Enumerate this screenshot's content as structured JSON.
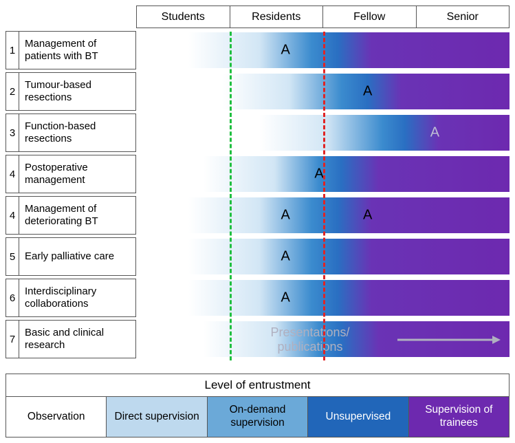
{
  "header": {
    "columns": [
      "Students",
      "Residents",
      "Fellow",
      "Senior"
    ]
  },
  "rows": [
    {
      "num": "1",
      "label": "Management of patients with BT",
      "grad_class": "g1",
      "markers": [
        {
          "pct": 40,
          "text": "A",
          "light": false
        }
      ]
    },
    {
      "num": "2",
      "label": "Tumour-based resections",
      "grad_class": "g2",
      "markers": [
        {
          "pct": 62,
          "text": "A",
          "light": false
        }
      ]
    },
    {
      "num": "3",
      "label": "Function-based resections",
      "grad_class": "g3",
      "markers": [
        {
          "pct": 80,
          "text": "A",
          "light": true
        }
      ]
    },
    {
      "num": "4",
      "label": "Postoperative management",
      "grad_class": "g4",
      "markers": [
        {
          "pct": 49,
          "text": "A",
          "light": false
        }
      ]
    },
    {
      "num": "4",
      "label": "Management of deteriorating BT",
      "grad_class": "g5",
      "markers": [
        {
          "pct": 40,
          "text": "A",
          "light": false
        },
        {
          "pct": 62,
          "text": "A",
          "light": false
        }
      ]
    },
    {
      "num": "5",
      "label": "Early palliative care",
      "grad_class": "g6",
      "markers": [
        {
          "pct": 40,
          "text": "A",
          "light": false
        }
      ]
    },
    {
      "num": "6",
      "label": "Interdisciplinary collaborations",
      "grad_class": "g7",
      "markers": [
        {
          "pct": 40,
          "text": "A",
          "light": false
        }
      ]
    },
    {
      "num": "7",
      "label": "Basic and clinical research",
      "grad_class": "g8",
      "markers": []
    }
  ],
  "dashed_lines": {
    "green": {
      "pct": 25,
      "color": "#1fbf3f"
    },
    "red": {
      "pct": 50,
      "color": "#e02424"
    }
  },
  "overlay_text": {
    "line1": "Presentations/",
    "line2": "publications",
    "color": "#b0b0c0"
  },
  "arrow": {
    "color": "#b0b0c0"
  },
  "legend": {
    "title": "Level of entrustment",
    "cells": [
      {
        "label": "Observation",
        "bg": "#ffffff",
        "fg": "#000000"
      },
      {
        "label": "Direct supervision",
        "bg": "#bed9ee",
        "fg": "#000000"
      },
      {
        "label": "On-demand supervision",
        "bg": "#6ba9d8",
        "fg": "#000000"
      },
      {
        "label": "Unsupervised",
        "bg": "#2166b9",
        "fg": "#ffffff"
      },
      {
        "label": "Supervision of trainees",
        "bg": "#6d29af",
        "fg": "#ffffff"
      }
    ]
  },
  "colors": {
    "border": "#555555",
    "white": "#ffffff",
    "blue_mid": "#3b8bce",
    "blue_dark": "#2166b9",
    "purple": "#6d29af"
  }
}
